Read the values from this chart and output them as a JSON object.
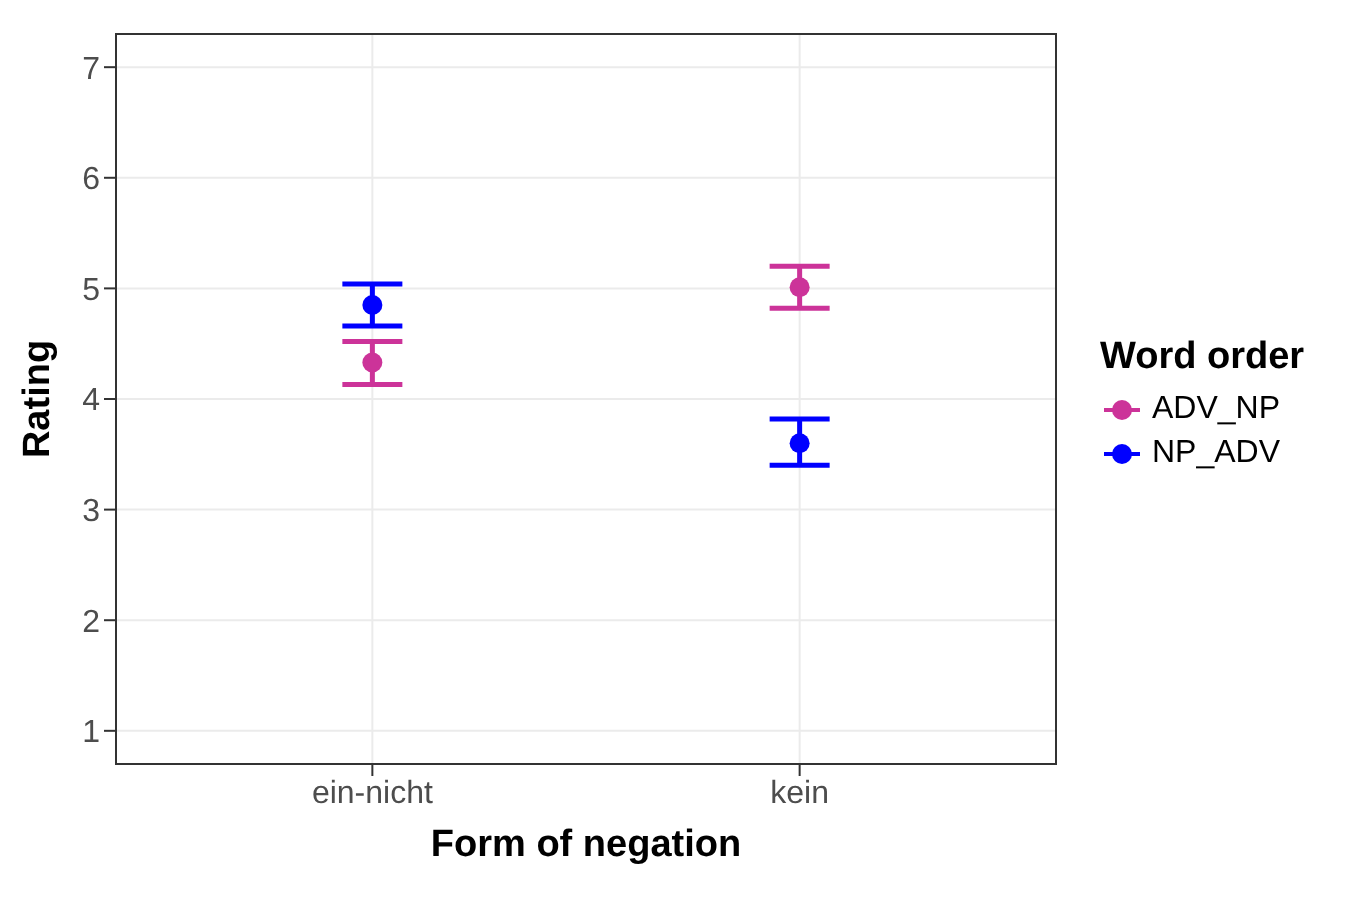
{
  "chart_data": {
    "type": "scatter",
    "xlabel": "Form of negation",
    "ylabel": "Rating",
    "legend_title": "Word order",
    "categories": [
      "ein-nicht",
      "kein"
    ],
    "series": [
      {
        "name": "ADV_NP",
        "color": "#cc3399",
        "values": [
          4.33,
          5.01
        ],
        "errors": [
          [
            4.13,
            4.52
          ],
          [
            4.82,
            5.2
          ]
        ]
      },
      {
        "name": "NP_ADV",
        "color": "#0000ff",
        "values": [
          4.85,
          3.6
        ],
        "errors": [
          [
            4.66,
            5.04
          ],
          [
            3.4,
            3.82
          ]
        ]
      }
    ],
    "ylim": [
      0.7,
      7.3
    ],
    "yticks": [
      1,
      2,
      3,
      4,
      5,
      6,
      7
    ],
    "grid": true,
    "legend": "right",
    "marker": "circle"
  }
}
